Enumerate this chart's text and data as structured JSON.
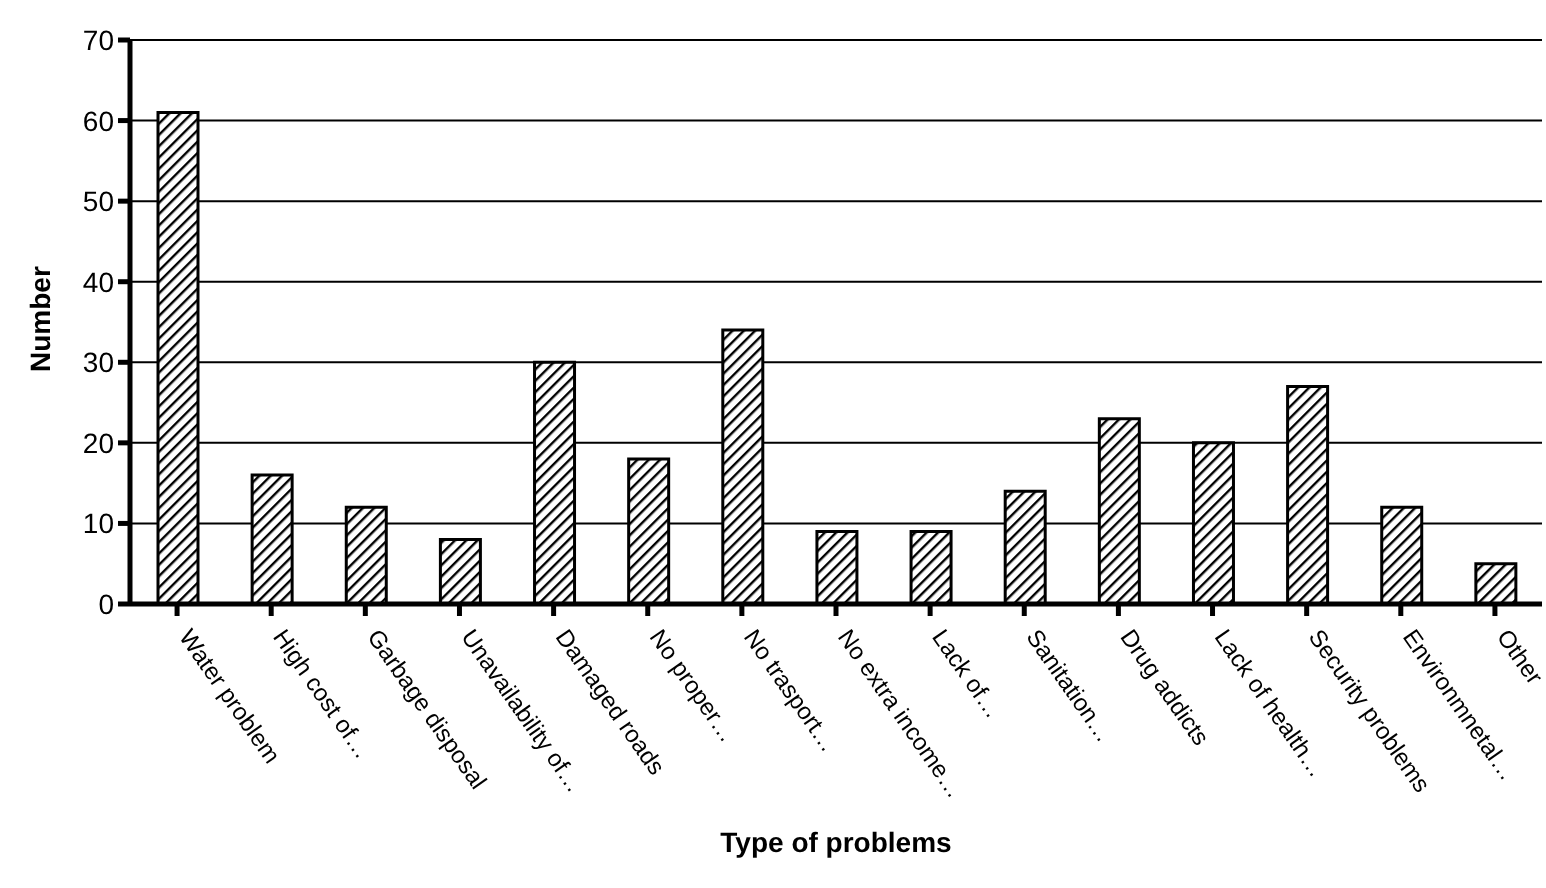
{
  "chart_data": {
    "type": "bar",
    "xlabel": "Type of problems",
    "ylabel": "Number",
    "categories": [
      "Water problem",
      "High cost of…",
      "Garbage disposal",
      "Unavailability of…",
      "Damaged roads",
      "No proper…",
      "No trasport…",
      "No extra income…",
      "Lack of…",
      "Sanitation…",
      "Drug addicts",
      "Lack of health…",
      "Security problems",
      "Environmnetal…",
      "Other"
    ],
    "values": [
      61,
      16,
      12,
      8,
      30,
      18,
      34,
      9,
      9,
      14,
      23,
      20,
      27,
      12,
      5
    ],
    "color": "#000000",
    "ylim": [
      0,
      70
    ],
    "yticks": [
      0,
      10,
      20,
      30,
      40,
      50,
      60,
      70
    ],
    "grid": "y"
  }
}
